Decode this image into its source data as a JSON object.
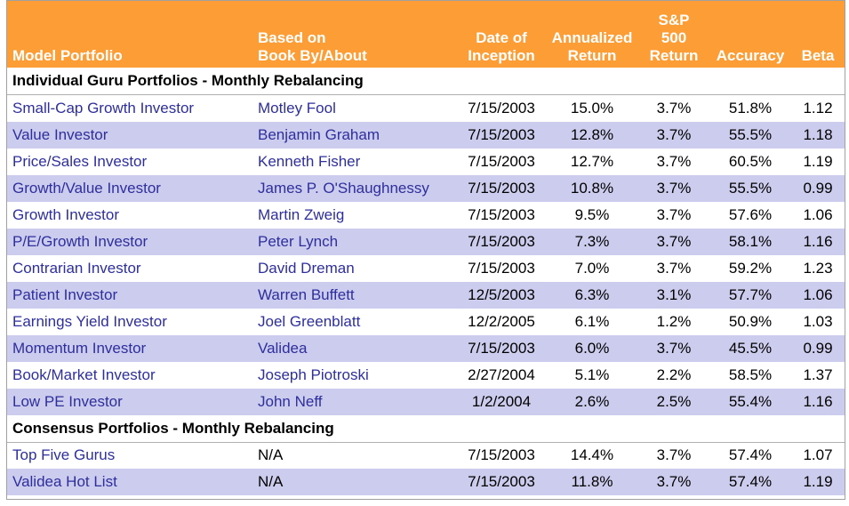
{
  "headers": {
    "model": "Model Portfolio",
    "book_1": "Based on",
    "book_2": "Book By/About",
    "date_1": "Date of",
    "date_2": "Inception",
    "ret_1": "Annualized",
    "ret_2": "Return",
    "sp_1": "S&P",
    "sp_2": "500",
    "sp_3": "Return",
    "accuracy": "Accuracy",
    "beta": "Beta"
  },
  "sections": [
    {
      "title": "Individual Guru Portfolios - Monthly Rebalancing",
      "rows": [
        {
          "name": "Small-Cap Growth Investor",
          "book": "Motley Fool",
          "date": "7/15/2003",
          "ret": "15.0%",
          "sp": "3.7%",
          "acc": "51.8%",
          "beta": "1.12"
        },
        {
          "name": "Value Investor",
          "book": "Benjamin Graham",
          "date": "7/15/2003",
          "ret": "12.8%",
          "sp": "3.7%",
          "acc": "55.5%",
          "beta": "1.18"
        },
        {
          "name": "Price/Sales Investor",
          "book": "Kenneth Fisher",
          "date": "7/15/2003",
          "ret": "12.7%",
          "sp": "3.7%",
          "acc": "60.5%",
          "beta": "1.19"
        },
        {
          "name": "Growth/Value Investor",
          "book": "James P. O'Shaughnessy",
          "date": "7/15/2003",
          "ret": "10.8%",
          "sp": "3.7%",
          "acc": "55.5%",
          "beta": "0.99"
        },
        {
          "name": "Growth Investor",
          "book": "Martin Zweig",
          "date": "7/15/2003",
          "ret": "9.5%",
          "sp": "3.7%",
          "acc": "57.6%",
          "beta": "1.06"
        },
        {
          "name": "P/E/Growth Investor",
          "book": "Peter Lynch",
          "date": "7/15/2003",
          "ret": "7.3%",
          "sp": "3.7%",
          "acc": "58.1%",
          "beta": "1.16"
        },
        {
          "name": "Contrarian Investor",
          "book": "David Dreman",
          "date": "7/15/2003",
          "ret": "7.0%",
          "sp": "3.7%",
          "acc": "59.2%",
          "beta": "1.23"
        },
        {
          "name": "Patient Investor",
          "book": "Warren Buffett",
          "date": "12/5/2003",
          "ret": "6.3%",
          "sp": "3.1%",
          "acc": "57.7%",
          "beta": "1.06"
        },
        {
          "name": "Earnings Yield Investor",
          "book": "Joel Greenblatt",
          "date": "12/2/2005",
          "ret": "6.1%",
          "sp": "1.2%",
          "acc": "50.9%",
          "beta": "1.03"
        },
        {
          "name": "Momentum Investor",
          "book": "Validea",
          "date": "7/15/2003",
          "ret": "6.0%",
          "sp": "3.7%",
          "acc": "45.5%",
          "beta": "0.99"
        },
        {
          "name": "Book/Market Investor",
          "book": "Joseph Piotroski",
          "date": "2/27/2004",
          "ret": "5.1%",
          "sp": "2.2%",
          "acc": "58.5%",
          "beta": "1.37"
        },
        {
          "name": "Low PE Investor",
          "book": "John Neff",
          "date": "1/2/2004",
          "ret": "2.6%",
          "sp": "2.5%",
          "acc": "55.4%",
          "beta": "1.16"
        }
      ]
    },
    {
      "title": "Consensus Portfolios - Monthly Rebalancing",
      "rows": [
        {
          "name": "Top Five Gurus",
          "book": "N/A",
          "date": "7/15/2003",
          "ret": "14.4%",
          "sp": "3.7%",
          "acc": "57.4%",
          "beta": "1.07"
        },
        {
          "name": "Validea Hot List",
          "book": "N/A",
          "date": "7/15/2003",
          "ret": "11.8%",
          "sp": "3.7%",
          "acc": "57.4%",
          "beta": "1.19"
        }
      ]
    }
  ]
}
